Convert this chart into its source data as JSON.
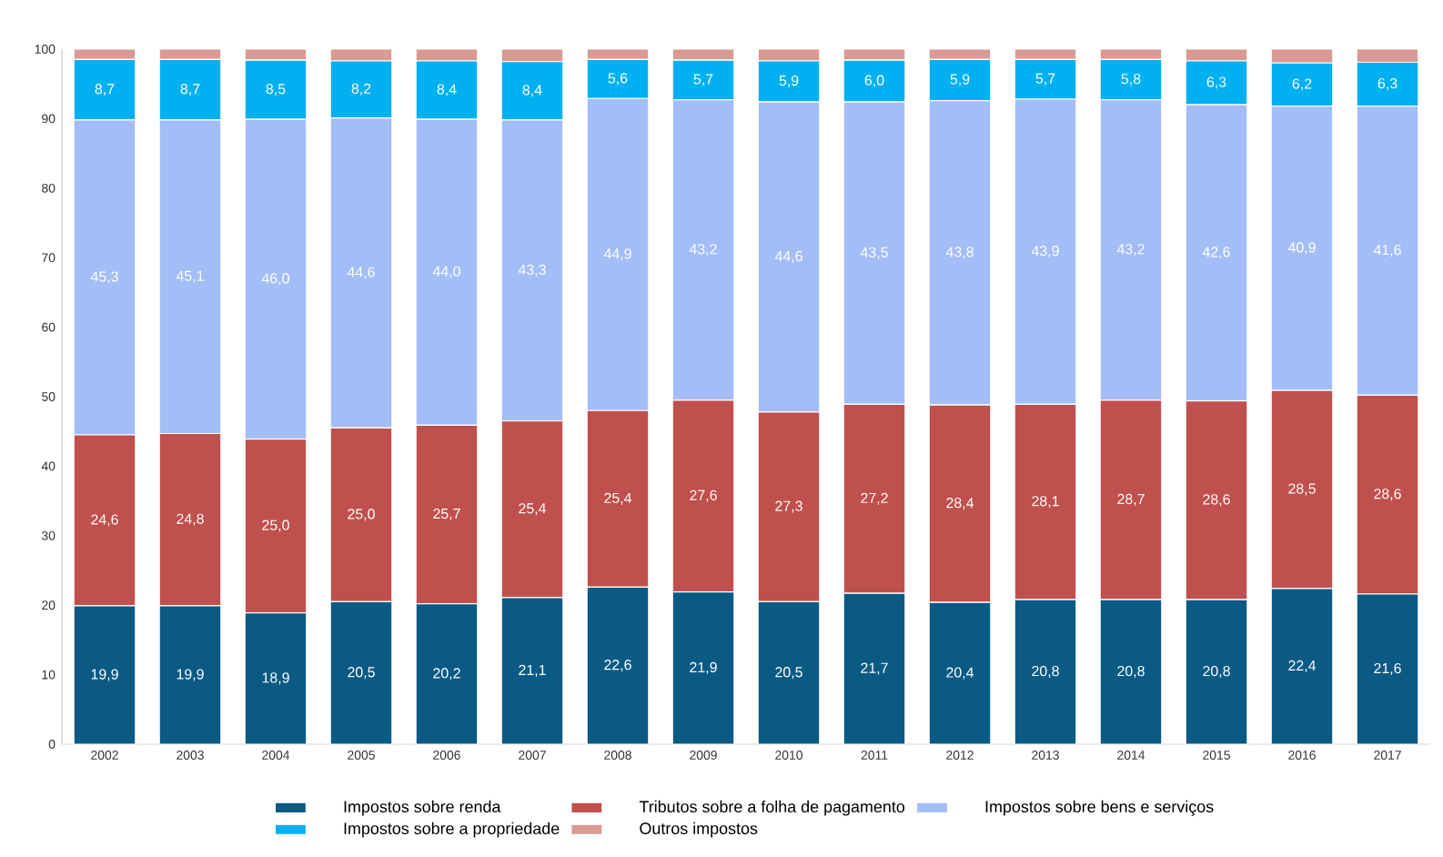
{
  "chart_data": {
    "type": "bar",
    "stacked": true,
    "legend": "bottom",
    "categories": [
      "2002",
      "2003",
      "2004",
      "2005",
      "2006",
      "2007",
      "2008",
      "2009",
      "2010",
      "2011",
      "2012",
      "2013",
      "2014",
      "2015",
      "2016",
      "2017"
    ],
    "ylim": [
      0,
      100
    ],
    "yticks": [
      0,
      10,
      20,
      30,
      40,
      50,
      60,
      70,
      80,
      90,
      100
    ],
    "series": [
      {
        "name": "Impostos sobre renda",
        "color": "#0b5a84",
        "values": [
          19.9,
          19.9,
          18.9,
          20.5,
          20.2,
          21.1,
          22.6,
          21.9,
          20.5,
          21.7,
          20.4,
          20.8,
          20.8,
          20.8,
          22.4,
          21.6
        ],
        "value_labels": [
          "19,9",
          "19,9",
          "18,9",
          "20,5",
          "20,2",
          "21,1",
          "22,6",
          "21,9",
          "20,5",
          "21,7",
          "20,4",
          "20,8",
          "20,8",
          "20,8",
          "22,4",
          "21,6"
        ]
      },
      {
        "name": "Tributos sobre a folha de pagamento",
        "color": "#c0504d",
        "values": [
          24.6,
          24.8,
          25.0,
          25.0,
          25.7,
          25.4,
          25.4,
          27.6,
          27.3,
          27.2,
          28.4,
          28.1,
          28.7,
          28.6,
          28.5,
          28.6
        ],
        "value_labels": [
          "24,6",
          "24,8",
          "25,0",
          "25,0",
          "25,7",
          "25,4",
          "25,4",
          "27,6",
          "27,3",
          "27,2",
          "28,4",
          "28,1",
          "28,7",
          "28,6",
          "28,5",
          "28,6"
        ]
      },
      {
        "name": "Impostos sobre bens e serviços",
        "color": "#a3bdf6",
        "values": [
          45.3,
          45.1,
          46.0,
          44.6,
          44.0,
          43.3,
          44.9,
          43.2,
          44.6,
          43.5,
          43.8,
          43.9,
          43.2,
          42.6,
          40.9,
          41.6
        ],
        "value_labels": [
          "45,3",
          "45,1",
          "46,0",
          "44,6",
          "44,0",
          "43,3",
          "44,9",
          "43,2",
          "44,6",
          "43,5",
          "43,8",
          "43,9",
          "43,2",
          "42,6",
          "40,9",
          "41,6"
        ]
      },
      {
        "name": "Impostos sobre a propriedade",
        "color": "#00b0f0",
        "values": [
          8.7,
          8.7,
          8.5,
          8.2,
          8.4,
          8.4,
          5.6,
          5.7,
          5.9,
          6.0,
          5.9,
          5.7,
          5.8,
          6.3,
          6.2,
          6.3
        ],
        "value_labels": [
          "8,7",
          "8,7",
          "8,5",
          "8,2",
          "8,4",
          "8,4",
          "5,6",
          "5,7",
          "5,9",
          "6,0",
          "5,9",
          "5,7",
          "5,8",
          "6,3",
          "6,2",
          "6,3"
        ]
      },
      {
        "name": "Outros impostos",
        "color": "#d99a94",
        "values": [
          1.5,
          1.5,
          1.6,
          1.7,
          1.7,
          1.8,
          1.5,
          1.6,
          1.7,
          1.6,
          1.5,
          1.5,
          1.5,
          1.7,
          2.0,
          1.9
        ]
      }
    ]
  }
}
